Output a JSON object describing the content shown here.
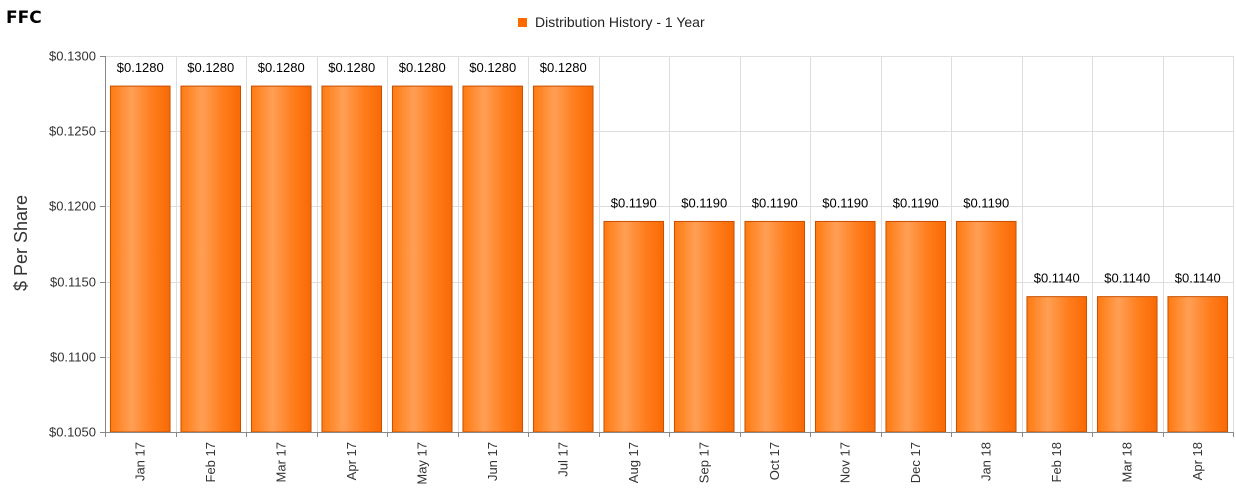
{
  "ticker": "FFC",
  "chart_data": {
    "type": "bar",
    "title": "",
    "xlabel": "",
    "ylabel": "$ Per Share",
    "legend": {
      "placement": "top-center"
    },
    "series": [
      {
        "name": "Distribution History - 1 Year",
        "color": "#ff6a00",
        "values": [
          0.128,
          0.128,
          0.128,
          0.128,
          0.128,
          0.128,
          0.128,
          0.119,
          0.119,
          0.119,
          0.119,
          0.119,
          0.119,
          0.114,
          0.114,
          0.114
        ]
      }
    ],
    "categories": [
      "Jan 17",
      "Feb 17",
      "Mar 17",
      "Apr 17",
      "May 17",
      "Jun 17",
      "Jul 17",
      "Aug 17",
      "Sep 17",
      "Oct 17",
      "Nov 17",
      "Dec 17",
      "Jan 18",
      "Feb 18",
      "Mar 18",
      "Apr 18"
    ],
    "data_labels": [
      "$0.1280",
      "$0.1280",
      "$0.1280",
      "$0.1280",
      "$0.1280",
      "$0.1280",
      "$0.1280",
      "$0.1190",
      "$0.1190",
      "$0.1190",
      "$0.1190",
      "$0.1190",
      "$0.1190",
      "$0.1140",
      "$0.1140",
      "$0.1140"
    ],
    "ylim": [
      0.105,
      0.13
    ],
    "yticks": [
      0.105,
      0.11,
      0.115,
      0.12,
      0.125,
      0.13
    ],
    "ytick_labels": [
      "$0.1050",
      "$0.1100",
      "$0.1150",
      "$0.1200",
      "$0.1250",
      "$0.1300"
    ],
    "grid": true
  }
}
